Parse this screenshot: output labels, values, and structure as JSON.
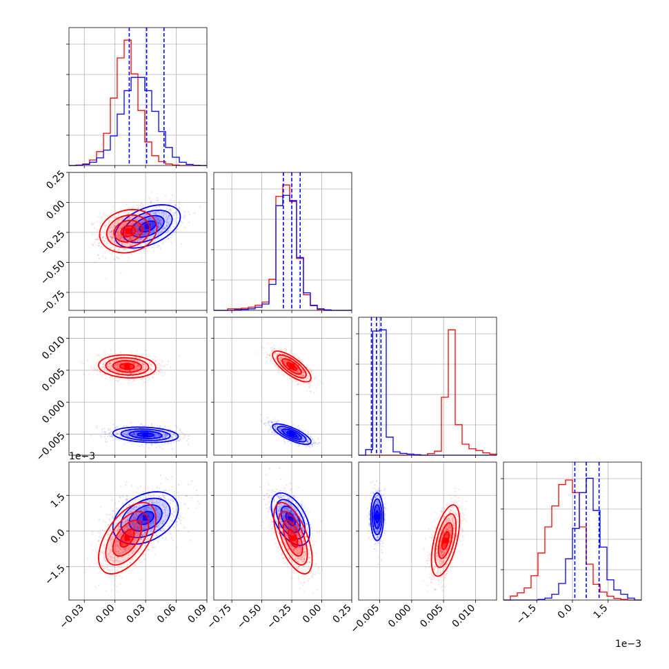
{
  "colors": {
    "series_a": "#ff0000",
    "series_b": "#0000ff",
    "grid": "#b0b0b0"
  },
  "chart_data": {
    "type": "corner",
    "grid": true,
    "series": [
      {
        "name": "",
        "color": "#0000ff",
        "quantiles_1d": {
          "p0": [
            0.014,
            0.031,
            0.048
          ],
          "p1": [
            -0.32,
            -0.25,
            -0.18
          ],
          "p2": [
            -0.0063,
            -0.0055,
            -0.0048
          ],
          "p3": [
            0.0001,
            0.00058,
            0.00112
          ]
        }
      },
      {
        "name": "",
        "color": "#ff0000"
      }
    ],
    "params": [
      {
        "range": [
          -0.045,
          0.09
        ],
        "ticks": [
          "−0.03",
          "0.00",
          "0.03",
          "0.06",
          "0.09"
        ],
        "tick_values": [
          -0.03,
          0,
          0.03,
          0.06,
          0.09
        ],
        "offset": ""
      },
      {
        "range": [
          -0.9,
          0.25
        ],
        "ticks": [
          "−0.75",
          "−0.50",
          "−0.25",
          "0.00",
          "0.25"
        ],
        "tick_values": [
          -0.75,
          -0.5,
          -0.25,
          0,
          0.25
        ],
        "offset": ""
      },
      {
        "range": [
          -0.0083,
          0.0133
        ],
        "ticks": [
          "−0.005",
          "0.000",
          "0.005",
          "0.010"
        ],
        "tick_values": [
          -0.005,
          0,
          0.005,
          0.01
        ],
        "offset": ""
      },
      {
        "range": [
          -0.0029,
          0.0029
        ],
        "ticks": [
          "−1.5",
          "0.0",
          "1.5"
        ],
        "tick_values": [
          -0.0015,
          0,
          0.0015
        ],
        "offset": "1e−3"
      }
    ],
    "histograms": [
      {
        "param": 0,
        "bin_edges": [
          -0.045,
          -0.0382,
          -0.0315,
          -0.0248,
          -0.018,
          -0.0112,
          -0.0045,
          0.0022,
          0.009,
          0.0158,
          0.0225,
          0.0292,
          0.036,
          0.0428,
          0.0495,
          0.0562,
          0.063,
          0.0698,
          0.0765,
          0.0832,
          0.09
        ],
        "red": [
          0.0,
          0.004,
          0.013,
          0.044,
          0.111,
          0.257,
          0.538,
          0.858,
          1.0,
          0.731,
          0.439,
          0.188,
          0.078,
          0.031,
          0.012,
          0.004,
          0.0,
          0.0,
          0.0,
          0.0
        ],
        "blue": [
          0.0,
          0.002,
          0.009,
          0.026,
          0.061,
          0.123,
          0.236,
          0.41,
          0.597,
          0.703,
          0.703,
          0.597,
          0.432,
          0.271,
          0.144,
          0.066,
          0.026,
          0.009,
          0.002,
          0.0
        ]
      },
      {
        "param": 1,
        "bin_edges": [
          -0.9,
          -0.8425,
          -0.785,
          -0.7275,
          -0.67,
          -0.6125,
          -0.555,
          -0.4975,
          -0.44,
          -0.3825,
          -0.325,
          -0.2675,
          -0.21,
          -0.1525,
          -0.095,
          -0.0375,
          0.02,
          0.0775,
          0.135,
          0.1925,
          0.25
        ],
        "red": [
          0.0,
          0.0,
          0.012,
          0.012,
          0.017,
          0.025,
          0.041,
          0.066,
          0.248,
          0.909,
          1.0,
          0.868,
          0.413,
          0.124,
          0.037,
          0.008,
          0.0,
          0.0,
          0.0,
          0.0
        ],
        "blue": [
          0.0,
          0.0,
          0.0,
          0.004,
          0.008,
          0.012,
          0.025,
          0.05,
          0.207,
          0.835,
          0.917,
          0.876,
          0.421,
          0.14,
          0.041,
          0.012,
          0.004,
          0.0,
          0.0,
          0.0
        ]
      },
      {
        "param": 2,
        "bin_edges": [
          -0.0083,
          -0.0072,
          -0.0061,
          -0.00506,
          -0.00398,
          -0.0029,
          -0.00182,
          -0.00074,
          0.00034,
          0.00142,
          0.0025,
          0.00358,
          0.00466,
          0.00574,
          0.00682,
          0.0079,
          0.00898,
          0.01006,
          0.01114,
          0.01222,
          0.0133
        ],
        "red": [
          0.0,
          0.0,
          0.0,
          0.0,
          0.0,
          0.0,
          0.0,
          0.0,
          0.0,
          0.0,
          0.013,
          0.032,
          0.462,
          1.0,
          0.243,
          0.088,
          0.051,
          0.037,
          0.019,
          0.009
        ],
        "blue": [
          0.0,
          0.045,
          0.99,
          1.0,
          0.144,
          0.027,
          0.014,
          0.009,
          0.004,
          0.0,
          0.0,
          0.0,
          0.0,
          0.0,
          0.0,
          0.0,
          0.0,
          0.0,
          0.0,
          0.0
        ]
      },
      {
        "param": 3,
        "bin_edges": [
          -0.0029,
          -0.00261,
          -0.00232,
          -0.00203,
          -0.00174,
          -0.00145,
          -0.00116,
          -0.00087,
          -0.00058,
          -0.00029,
          0.0,
          0.00029,
          0.00058,
          0.00087,
          0.00116,
          0.00145,
          0.00174,
          0.00203,
          0.00232,
          0.00261,
          0.0029
        ],
        "red": [
          0.0,
          0.032,
          0.057,
          0.097,
          0.194,
          0.375,
          0.583,
          0.75,
          0.921,
          0.957,
          0.857,
          0.583,
          0.286,
          0.125,
          0.064,
          0.031,
          0.012,
          0.005,
          0.0,
          0.0
        ],
        "blue": [
          0.0,
          0.0,
          0.0,
          0.0,
          0.0,
          0.005,
          0.015,
          0.046,
          0.132,
          0.329,
          0.571,
          0.857,
          0.971,
          0.714,
          0.422,
          0.161,
          0.08,
          0.046,
          0.015,
          0.0
        ]
      }
    ],
    "scatter_2d": [
      {
        "x": 0,
        "y": 1,
        "red_mean": [
          0.013,
          -0.24
        ],
        "red_sd": [
          0.014,
          0.09
        ],
        "red_rho": 0.15,
        "blue_mean": [
          0.032,
          -0.2
        ],
        "blue_sd": [
          0.016,
          0.09
        ],
        "blue_rho": 0.45
      },
      {
        "x": 0,
        "y": 2,
        "red_mean": [
          0.012,
          0.0056
        ],
        "red_sd": [
          0.014,
          0.0009
        ],
        "red_rho": -0.1,
        "blue_mean": [
          0.03,
          -0.0051
        ],
        "blue_sd": [
          0.016,
          0.0006
        ],
        "blue_rho": -0.2
      },
      {
        "x": 1,
        "y": 2,
        "red_mean": [
          -0.25,
          0.0056
        ],
        "red_sd": [
          0.08,
          0.0012
        ],
        "red_rho": -0.75,
        "blue_mean": [
          -0.25,
          -0.005
        ],
        "blue_sd": [
          0.08,
          0.0008
        ],
        "blue_rho": -0.75
      },
      {
        "x": 0,
        "y": 3,
        "red_mean": [
          0.012,
          -0.0003
        ],
        "red_sd": [
          0.014,
          0.00075
        ],
        "red_rho": 0.55,
        "blue_mean": [
          0.03,
          0.00055
        ],
        "blue_sd": [
          0.016,
          0.00055
        ],
        "blue_rho": 0.35
      },
      {
        "x": 1,
        "y": 3,
        "red_mean": [
          -0.24,
          -0.0003
        ],
        "red_sd": [
          0.08,
          0.00075
        ],
        "red_rho": -0.6,
        "blue_mean": [
          -0.26,
          0.0005
        ],
        "blue_sd": [
          0.08,
          0.00055
        ],
        "blue_rho": -0.5
      },
      {
        "x": 2,
        "y": 3,
        "red_mean": [
          0.0053,
          -0.0004
        ],
        "red_sd": [
          0.0011,
          0.00075
        ],
        "red_rho": 0.55,
        "blue_mean": [
          -0.0054,
          0.0006
        ],
        "blue_sd": [
          0.0005,
          0.0005
        ],
        "blue_rho": 0.0
      }
    ]
  }
}
